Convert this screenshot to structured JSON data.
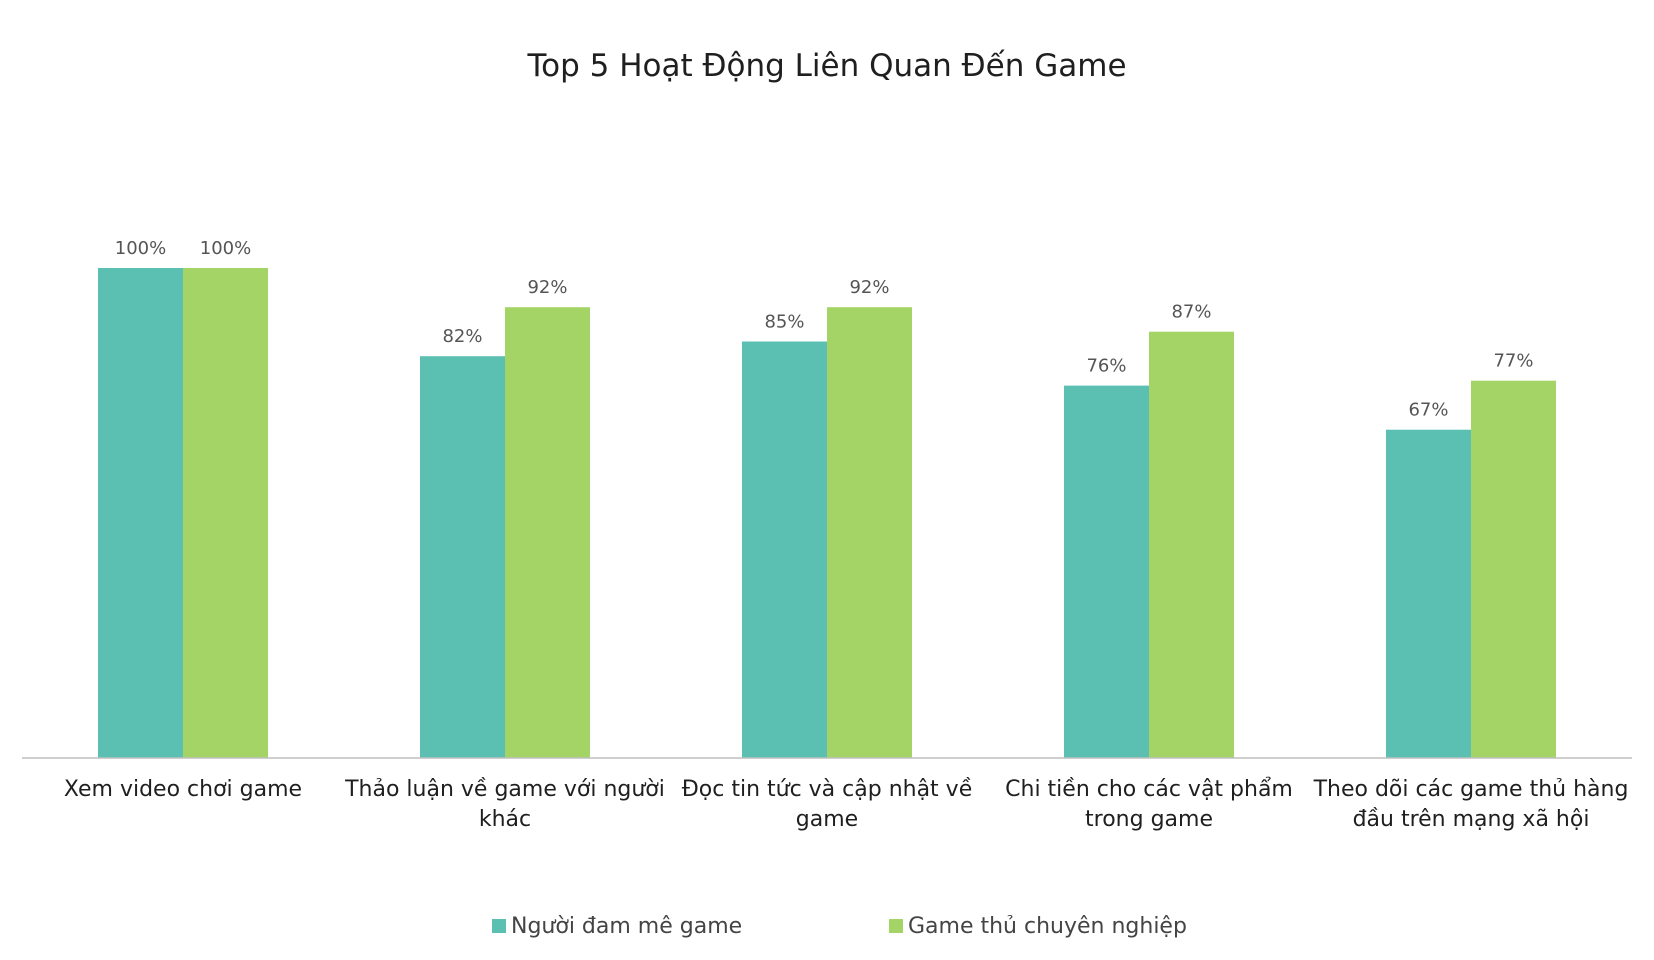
{
  "chart_data": {
    "type": "bar",
    "title": "Top 5 Hoạt Động Liên Quan Đến Game",
    "categories": [
      [
        "Xem video chơi game"
      ],
      [
        "Thảo luận về game với người",
        "khác"
      ],
      [
        "Đọc tin tức và cập nhật về",
        "game"
      ],
      [
        "Chi tiền cho các vật phẩm",
        "trong game"
      ],
      [
        "Theo dõi các game thủ hàng",
        "đầu trên mạng xã hội"
      ]
    ],
    "series": [
      {
        "name": "Người đam mê game",
        "color": "#5bc0b1",
        "values": [
          100,
          82,
          85,
          76,
          67
        ],
        "labels": [
          "100%",
          "82%",
          "85%",
          "76%",
          "67%"
        ]
      },
      {
        "name": "Game thủ chuyên nghiệp",
        "color": "#a4d465",
        "values": [
          100,
          92,
          92,
          87,
          77
        ],
        "labels": [
          "100%",
          "92%",
          "92%",
          "87%",
          "77%"
        ]
      }
    ],
    "ylim": [
      0,
      100
    ],
    "grid": false,
    "legend_position": "bottom"
  }
}
